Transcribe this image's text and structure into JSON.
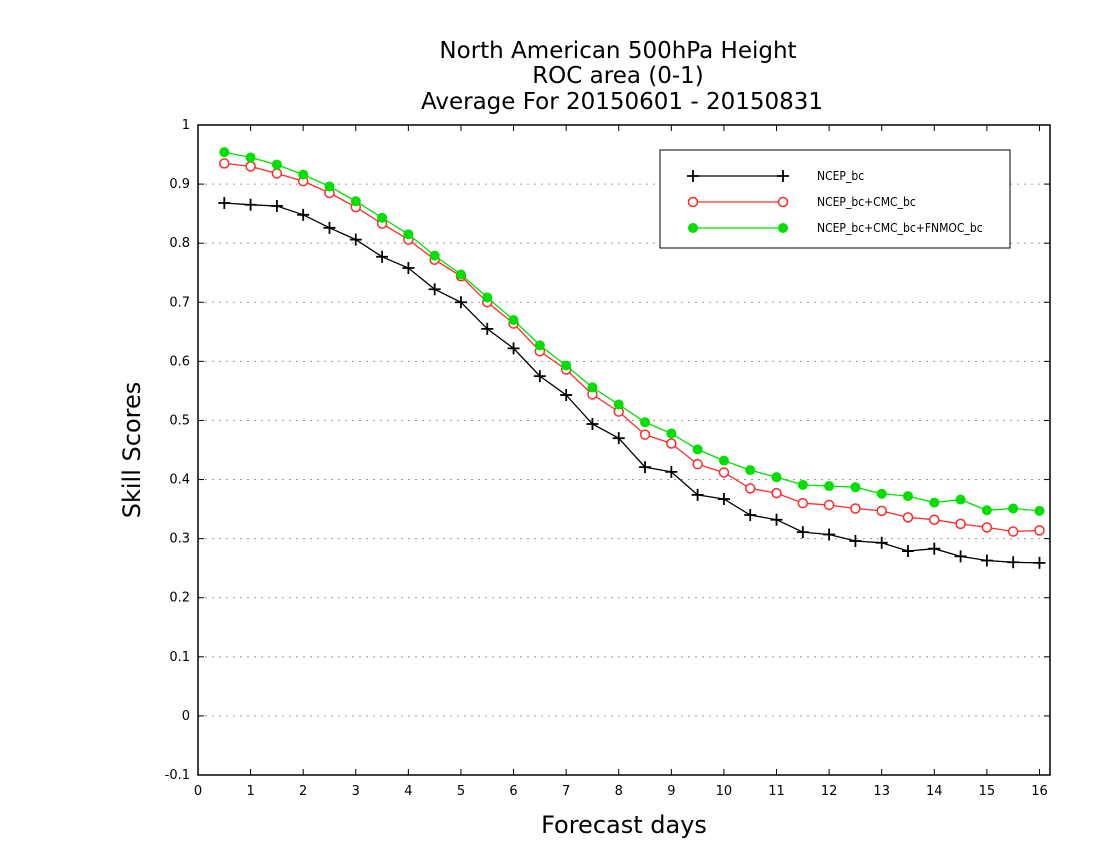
{
  "chart_data": {
    "type": "line",
    "title": [
      "North American 500hPa Height",
      "ROC area (0-1)",
      "Average For 20150601 - 20150831"
    ],
    "xlabel": "Forecast days",
    "ylabel": "Skill Scores",
    "xlim": [
      0,
      16.2
    ],
    "ylim": [
      -0.1,
      1
    ],
    "x_ticks": [
      0,
      1,
      2,
      3,
      4,
      5,
      6,
      7,
      8,
      9,
      10,
      11,
      12,
      13,
      14,
      15,
      16
    ],
    "x_tick_labels": [
      "0",
      "1",
      "2",
      "3",
      "4",
      "5",
      "6",
      "7",
      "8",
      "9",
      "10",
      "11",
      "12",
      "13",
      "14",
      "15",
      "16"
    ],
    "y_ticks": [
      -0.1,
      0,
      0.1,
      0.2,
      0.3,
      0.4,
      0.5,
      0.6,
      0.7,
      0.8,
      0.9,
      1
    ],
    "y_tick_labels": [
      "-0.1",
      "0",
      "0.1",
      "0.2",
      "0.3",
      "0.4",
      "0.5",
      "0.6",
      "0.7",
      "0.8",
      "0.9",
      "1"
    ],
    "grid": true,
    "legend_position": "top-right",
    "x": [
      0.5,
      1,
      1.5,
      2,
      2.5,
      3,
      3.5,
      4,
      4.5,
      5,
      5.5,
      6,
      6.5,
      7,
      7.5,
      8,
      8.5,
      9,
      9.5,
      10,
      10.5,
      11,
      11.5,
      12,
      12.5,
      13,
      13.5,
      14,
      14.5,
      15,
      15.5,
      16
    ],
    "series": [
      {
        "name": "NCEP_bc",
        "color": "#000000",
        "marker": "plus",
        "values": [
          0.868,
          0.865,
          0.863,
          0.848,
          0.826,
          0.806,
          0.777,
          0.758,
          0.722,
          0.7,
          0.655,
          0.622,
          0.575,
          0.543,
          0.494,
          0.47,
          0.421,
          0.413,
          0.374,
          0.367,
          0.34,
          0.332,
          0.311,
          0.307,
          0.296,
          0.293,
          0.279,
          0.283,
          0.27,
          0.263,
          0.26,
          0.259
        ]
      },
      {
        "name": "NCEP_bc+CMC_bc",
        "color": "#ff2a2a",
        "marker": "open-circle",
        "values": [
          0.935,
          0.93,
          0.918,
          0.905,
          0.885,
          0.861,
          0.833,
          0.806,
          0.772,
          0.744,
          0.7,
          0.664,
          0.617,
          0.586,
          0.544,
          0.515,
          0.476,
          0.461,
          0.426,
          0.412,
          0.385,
          0.377,
          0.36,
          0.357,
          0.351,
          0.347,
          0.336,
          0.332,
          0.325,
          0.319,
          0.312,
          0.314
        ]
      },
      {
        "name": "NCEP_bc+CMC_bc+FNMOC_bc",
        "color": "#00e000",
        "marker": "filled-circle",
        "values": [
          0.954,
          0.945,
          0.933,
          0.916,
          0.896,
          0.871,
          0.843,
          0.815,
          0.779,
          0.747,
          0.708,
          0.67,
          0.627,
          0.593,
          0.556,
          0.527,
          0.497,
          0.478,
          0.451,
          0.432,
          0.416,
          0.404,
          0.391,
          0.389,
          0.387,
          0.376,
          0.372,
          0.361,
          0.366,
          0.348,
          0.351,
          0.347
        ]
      }
    ]
  }
}
